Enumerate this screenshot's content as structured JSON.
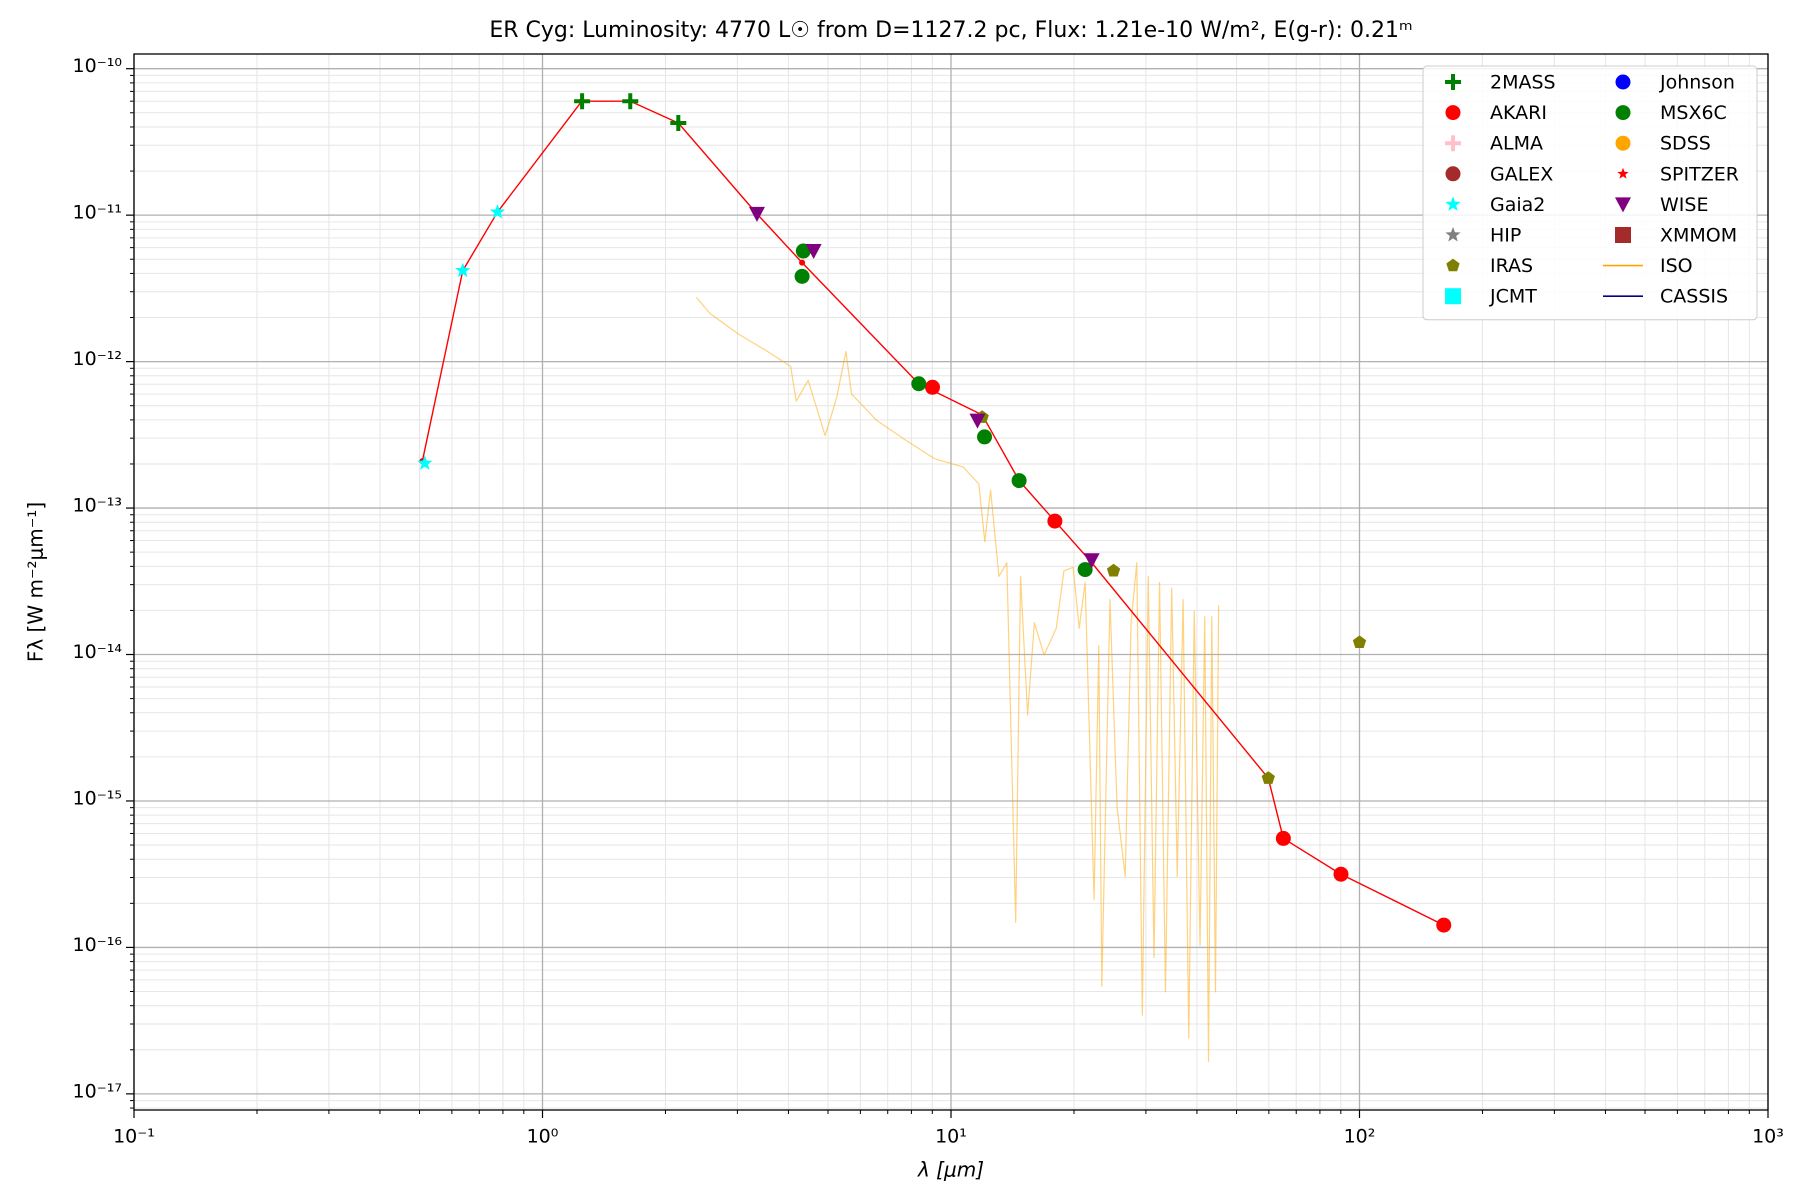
{
  "chart_data": {
    "type": "sed",
    "title": "ER Cyg:  Luminosity: 4770 L☉ from D=1127.2 pc, Flux: 1.21e-10 W/m², E(g-r): 0.21ᵐ",
    "x_label": "λ [μm]",
    "y_label": "Fλ [W m⁻²μm⁻¹]",
    "xscale": "log",
    "yscale": "log",
    "xlim": [
      0.1,
      1000
    ],
    "ylim": [
      7.76e-18,
      1.26e-10
    ],
    "xticks": [
      {
        "value": 0.1,
        "label": "10⁻¹"
      },
      {
        "value": 1,
        "label": "10⁰"
      },
      {
        "value": 10,
        "label": "10¹"
      },
      {
        "value": 100,
        "label": "10²"
      },
      {
        "value": 1000,
        "label": "10³"
      }
    ],
    "yticks": [
      {
        "value": 1e-17,
        "label": "10⁻¹⁷"
      },
      {
        "value": 1e-16,
        "label": "10⁻¹⁶"
      },
      {
        "value": 1e-15,
        "label": "10⁻¹⁵"
      },
      {
        "value": 1e-14,
        "label": "10⁻¹⁴"
      },
      {
        "value": 1e-13,
        "label": "10⁻¹³"
      },
      {
        "value": 1e-12,
        "label": "10⁻¹²"
      },
      {
        "value": 1e-11,
        "label": "10⁻¹¹"
      },
      {
        "value": 1e-10,
        "label": "10⁻¹⁰"
      }
    ],
    "grid": true,
    "minor_grid": true,
    "legend": "upper right",
    "legend_columns": 2,
    "series": [
      {
        "name": "2MASS",
        "color": "#008000",
        "marker": "plus",
        "x": [
          1.25,
          1.64,
          2.15
        ],
        "values": [
          6e-11,
          6e-11,
          4.26e-11
        ]
      },
      {
        "name": "AKARI",
        "color": "#ff0000",
        "marker": "circle",
        "x": [
          9.01,
          17.96,
          65.1,
          90.1,
          160.8
        ],
        "values": [
          6.68e-13,
          8.15e-14,
          5.55e-16,
          3.16e-16,
          1.42e-16
        ]
      },
      {
        "name": "ALMA",
        "color": "#ffc0cb",
        "marker": "plus",
        "x": [],
        "values": []
      },
      {
        "name": "GALEX",
        "color": "#a52a2a",
        "marker": "circle",
        "x": [],
        "values": []
      },
      {
        "name": "Gaia2",
        "color": "#00ffff",
        "marker": "star",
        "x": [
          0.515,
          0.638,
          0.776
        ],
        "values": [
          2.02e-13,
          4.18e-12,
          1.05e-11
        ]
      },
      {
        "name": "HIP",
        "color": "#808080",
        "marker": "star",
        "x": [],
        "values": []
      },
      {
        "name": "IRAS",
        "color": "#808000",
        "marker": "pentagon",
        "x": [
          11.92,
          25.0,
          59.8,
          100
        ],
        "values": [
          4.17e-13,
          3.73e-14,
          1.43e-15,
          1.21e-14
        ]
      },
      {
        "name": "JCMT",
        "color": "#00ffff",
        "marker": "square",
        "x": [],
        "values": []
      },
      {
        "name": "Johnson",
        "color": "#0000ff",
        "marker": "circle",
        "x": [],
        "values": []
      },
      {
        "name": "MSX6C",
        "color": "#008000",
        "marker": "circle",
        "x": [
          4.32,
          4.35,
          8.34,
          12.08,
          14.68,
          21.3
        ],
        "values": [
          3.82e-12,
          5.69e-12,
          7.06e-13,
          3.06e-13,
          1.54e-13,
          3.8e-14
        ]
      },
      {
        "name": "SDSS",
        "color": "#ffa500",
        "marker": "circle",
        "x": [],
        "values": []
      },
      {
        "name": "SPITZER",
        "color": "#ff0000",
        "marker": "smallstar",
        "x": [],
        "values": []
      },
      {
        "name": "WISE",
        "color": "#800080",
        "marker": "triangle_down",
        "x": [
          3.35,
          4.61,
          11.61,
          22.1
        ],
        "values": [
          1.02e-11,
          5.69e-12,
          3.95e-13,
          4.4e-14
        ]
      },
      {
        "name": "XMMOM",
        "color": "#a52a2a",
        "marker": "square",
        "x": [],
        "values": []
      },
      {
        "name": "ISO",
        "color": "#ffa500",
        "style": "line",
        "alpha": 0.5,
        "x": [
          2.38,
          2.57,
          3.02,
          3.56,
          4.05,
          4.18,
          4.47,
          4.92,
          5.25,
          5.53,
          5.71,
          6.59,
          7.76,
          9.12,
          10.7,
          11.7,
          12.1,
          12.5,
          13.1,
          13.7,
          14.4,
          14.8,
          15.4,
          16.0,
          16.9,
          18.1,
          18.9,
          19.9,
          20.6,
          21.3,
          22.4,
          23.0,
          23.4,
          24.5,
          25.5,
          26.7,
          27.6,
          28.5,
          29.4,
          30.4,
          31.4,
          32.4,
          33.5,
          34.7,
          35.8,
          37.0,
          38.2,
          39.4,
          40.7,
          41.8,
          42.7,
          43.5,
          44.4,
          45.2
        ],
        "values": [
          2.75e-12,
          2.13e-12,
          1.54e-12,
          1.17e-12,
          9.27e-13,
          5.37e-13,
          7.45e-13,
          3.12e-13,
          5.68e-13,
          1.17e-12,
          6e-13,
          3.95e-13,
          2.9e-13,
          2.17e-13,
          1.91e-13,
          1.46e-13,
          5.88e-14,
          1.33e-13,
          3.41e-14,
          4.24e-14,
          1.48e-16,
          3.41e-14,
          3.86e-15,
          1.65e-14,
          9.93e-15,
          1.51e-14,
          3.73e-14,
          3.94e-14,
          1.51e-14,
          3.11e-14,
          2.12e-16,
          1.15e-14,
          5.43e-17,
          2.37e-14,
          9.06e-16,
          3.05e-16,
          1.65e-14,
          4.24e-14,
          3.45e-17,
          3.41e-14,
          8.55e-17,
          3.11e-14,
          4.97e-17,
          2.84e-14,
          3.05e-16,
          2.37e-14,
          2.4e-17,
          1.98e-14,
          1.03e-16,
          1.81e-14,
          1.67e-17,
          1.81e-14,
          4.97e-17,
          2.17e-14
        ]
      },
      {
        "name": "CASSIS",
        "color": "#00008b",
        "style": "line",
        "x": [],
        "values": []
      },
      {
        "color": "#ff0000",
        "style": "line",
        "marker": "dot",
        "x": [
          0.508,
          0.638,
          0.776,
          1.248,
          1.64,
          2.15,
          3.35,
          4.32,
          8.34,
          11.92,
          14.68,
          17.96,
          22.1,
          59.8,
          65.1,
          90.1,
          160.8
        ],
        "values": [
          2.09e-13,
          4.18e-12,
          1.05e-11,
          6e-11,
          6e-11,
          4.26e-11,
          1.02e-11,
          4.74e-12,
          7.06e-13,
          4.33e-13,
          1.54e-13,
          8.15e-14,
          4.24e-14,
          1.43e-15,
          5.55e-16,
          3.16e-16,
          1.42e-16
        ]
      }
    ]
  }
}
